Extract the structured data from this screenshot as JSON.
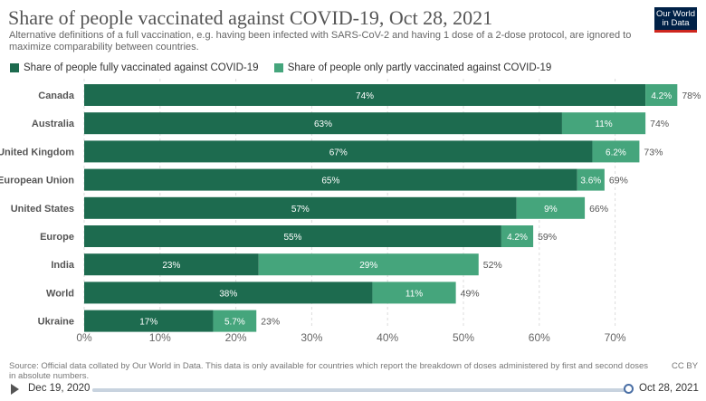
{
  "header": {
    "title": "Share of people vaccinated against COVID-19, Oct 28, 2021",
    "subtitle": "Alternative definitions of a full vaccination, e.g. having been infected with SARS-CoV-2 and having 1 dose of a 2-dose protocol, are ignored to maximize comparability between countries.",
    "logo": "Our World in Data"
  },
  "colors": {
    "full": "#1d6b4f",
    "partial": "#45a57c",
    "grid": "#dddddd"
  },
  "chart_data": {
    "type": "bar",
    "orientation": "horizontal",
    "stacked": true,
    "title": "Share of people vaccinated against COVID-19, Oct 28, 2021",
    "categories": [
      "Canada",
      "Australia",
      "United Kingdom",
      "European Union",
      "United States",
      "Europe",
      "India",
      "World",
      "Ukraine"
    ],
    "series": [
      {
        "name": "Share of people fully vaccinated against COVID-19",
        "values": [
          74,
          63,
          67,
          65,
          57,
          55,
          23,
          38,
          17
        ],
        "labels": [
          "74%",
          "63%",
          "67%",
          "65%",
          "57%",
          "55%",
          "23%",
          "38%",
          "17%"
        ]
      },
      {
        "name": "Share of people only partly vaccinated against COVID-19",
        "values": [
          4.2,
          11,
          6.2,
          3.6,
          9,
          4.2,
          29,
          11,
          5.7
        ],
        "labels": [
          "4.2%",
          "11%",
          "6.2%",
          "3.6%",
          "9%",
          "4.2%",
          "29%",
          "11%",
          "5.7%"
        ]
      }
    ],
    "totals": [
      "78%",
      "74%",
      "73%",
      "69%",
      "66%",
      "59%",
      "52%",
      "49%",
      "23%"
    ],
    "xlim": [
      0,
      75
    ],
    "xticks": [
      0,
      10,
      20,
      30,
      40,
      50,
      60,
      70
    ],
    "xtick_labels": [
      "0%",
      "10%",
      "20%",
      "30%",
      "40%",
      "50%",
      "60%",
      "70%"
    ],
    "grid": true,
    "legend_position": "top-left"
  },
  "footer": {
    "source": "Source: Official data collated by Our World in Data. This data is only available for countries which report the breakdown of doses administered by first and second doses in absolute numbers.",
    "license": "CC BY"
  },
  "timeline": {
    "start_date": "Dec 19, 2020",
    "end_date": "Oct 28, 2021"
  }
}
